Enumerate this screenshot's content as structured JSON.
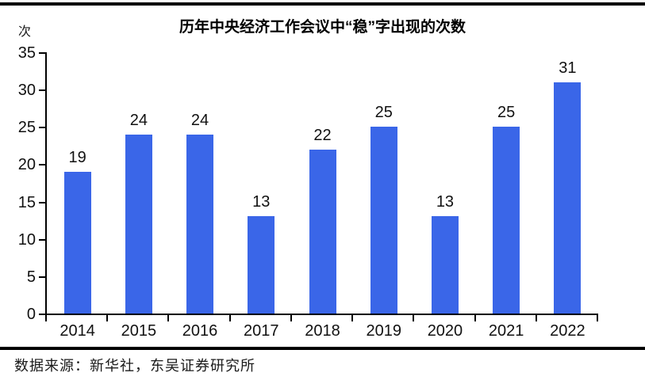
{
  "page": {
    "unit_label": "次",
    "title": "历年中央经济工作会议中“稳”字出现的次数",
    "source": "数据来源：新华社，东吴证券研究所"
  },
  "colors": {
    "bar": "#3a66e8",
    "axis": "#000000",
    "divider": "#000000",
    "text": "#111111"
  },
  "chart_data": {
    "type": "bar",
    "title": "历年中央经济工作会议中“稳”字出现的次数",
    "categories": [
      "2014",
      "2015",
      "2016",
      "2017",
      "2018",
      "2019",
      "2020",
      "2021",
      "2022"
    ],
    "values": [
      19,
      24,
      24,
      13,
      22,
      25,
      13,
      25,
      31
    ],
    "xlabel": "",
    "ylabel": "次",
    "ylim": [
      0,
      35
    ],
    "ytick_step": 5,
    "grid": false,
    "legend": "none",
    "data_labels": true,
    "bar_color": "#3a66e8",
    "source": "数据来源：新华社，东吴证券研究所"
  }
}
